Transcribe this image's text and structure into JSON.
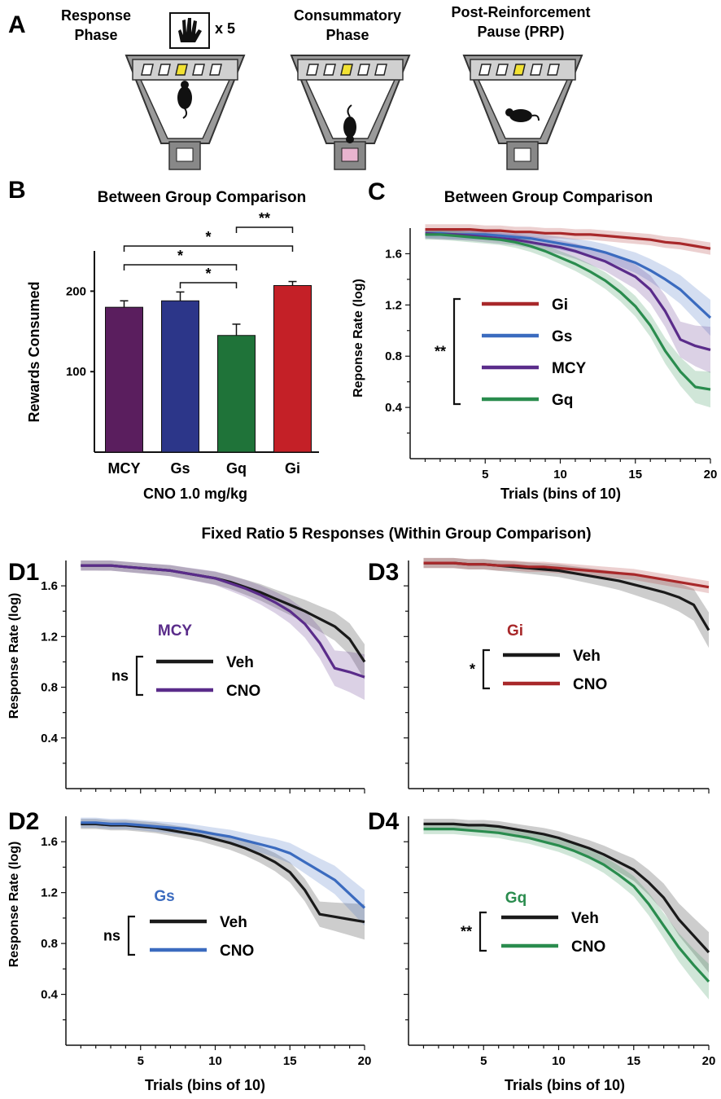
{
  "panel_A": {
    "label": "A",
    "stages": [
      {
        "title_line1": "Response",
        "title_line2": "Phase",
        "extra": "x 5",
        "tray": "white",
        "mouse": "center"
      },
      {
        "title_line1": "Consummatory",
        "title_line2": "Phase",
        "tray": "pink",
        "mouse": "bottom"
      },
      {
        "title_line1": "Post-Reinforcement",
        "title_line2": "Pause (PRP)",
        "tray": "white",
        "mouse": "lying"
      }
    ],
    "colors": {
      "hole_lit": "#f2e233",
      "tray_pink": "#e8b4cf",
      "wall": "#9a9a9a",
      "ceiling": "#d0d0d0"
    }
  },
  "section_title": "Fixed Ratio 5 Responses (Within Group Comparison)",
  "chart_data": [
    {
      "id": "B",
      "label": "B",
      "type": "bar",
      "title": "Between Group Comparison",
      "ylabel": "Rewards Consumed",
      "xlabel": "CNO 1.0 mg/kg",
      "categories": [
        "MCY",
        "Gs",
        "Gq",
        "Gi"
      ],
      "values": [
        180,
        188,
        145,
        207
      ],
      "errors": [
        8,
        11,
        14,
        5
      ],
      "colors": [
        "#5a1e5e",
        "#2c3689",
        "#1f7339",
        "#c42027"
      ],
      "ylim": [
        0,
        250
      ],
      "yticks": [
        100,
        200
      ],
      "significance": [
        {
          "from": 0,
          "to": 2,
          "label": "*"
        },
        {
          "from": 0,
          "to": 3,
          "label": "*"
        },
        {
          "from": 1,
          "to": 2,
          "label": "*"
        },
        {
          "from": 2,
          "to": 3,
          "label": "**"
        }
      ]
    },
    {
      "id": "C",
      "label": "C",
      "type": "line",
      "title": "Between Group Comparison",
      "xlabel": "Trials (bins of 10)",
      "ylabel": "Reponse Rate (log)",
      "xlim": [
        0,
        20
      ],
      "ylim": [
        0,
        1.8
      ],
      "xticks": [
        5,
        10,
        15,
        20
      ],
      "yticks": [
        0.4,
        0.8,
        1.2,
        1.6
      ],
      "ytick_labels": [
        "0.4",
        "0.8",
        "1.2",
        "1.6"
      ],
      "x": [
        1,
        2,
        3,
        4,
        5,
        6,
        7,
        8,
        9,
        10,
        11,
        12,
        13,
        14,
        15,
        16,
        17,
        18,
        19,
        20
      ],
      "legend_bracket": "**",
      "series": [
        {
          "name": "Gi",
          "color": "#a8282a",
          "band": 0.04,
          "band_scale": 1.2,
          "values": [
            1.79,
            1.79,
            1.79,
            1.79,
            1.78,
            1.78,
            1.77,
            1.77,
            1.76,
            1.76,
            1.75,
            1.75,
            1.74,
            1.73,
            1.72,
            1.71,
            1.69,
            1.68,
            1.66,
            1.64
          ]
        },
        {
          "name": "Gs",
          "color": "#3b6bbf",
          "band": 0.04,
          "band_scale": 3.5,
          "values": [
            1.76,
            1.76,
            1.75,
            1.75,
            1.75,
            1.74,
            1.73,
            1.72,
            1.7,
            1.68,
            1.66,
            1.64,
            1.61,
            1.57,
            1.53,
            1.47,
            1.4,
            1.32,
            1.21,
            1.1
          ]
        },
        {
          "name": "MCY",
          "color": "#5a2c8a",
          "band": 0.04,
          "band_scale": 4.5,
          "values": [
            1.76,
            1.75,
            1.75,
            1.74,
            1.73,
            1.72,
            1.71,
            1.69,
            1.67,
            1.65,
            1.62,
            1.58,
            1.54,
            1.48,
            1.42,
            1.32,
            1.15,
            0.93,
            0.88,
            0.85
          ]
        },
        {
          "name": "Gq",
          "color": "#2a8c4e",
          "band": 0.04,
          "band_scale": 3.5,
          "values": [
            1.75,
            1.75,
            1.74,
            1.73,
            1.72,
            1.71,
            1.69,
            1.66,
            1.62,
            1.57,
            1.52,
            1.46,
            1.39,
            1.3,
            1.19,
            1.04,
            0.84,
            0.68,
            0.56,
            0.54
          ]
        }
      ]
    },
    {
      "id": "D1",
      "label": "D1",
      "type": "line",
      "xlim": [
        0,
        20
      ],
      "ylim": [
        0,
        1.8
      ],
      "xticks": [
        5,
        10,
        15,
        20
      ],
      "show_xtick_labels": false,
      "yticks": [
        0.4,
        0.8,
        1.2,
        1.6
      ],
      "ytick_labels": [
        "0.4",
        "0.8",
        "1.2",
        "1.6"
      ],
      "ylabel": "Response Rate (log)",
      "x": [
        1,
        2,
        3,
        4,
        5,
        6,
        7,
        8,
        9,
        10,
        11,
        12,
        13,
        14,
        15,
        16,
        17,
        18,
        19,
        20
      ],
      "legend_title": "MCY",
      "legend_title_color": "#5a2c8a",
      "legend_bracket": "ns",
      "series": [
        {
          "name": "Veh",
          "color": "#1a1a1a",
          "band": 0.04,
          "band_scale": 3.5,
          "values": [
            1.76,
            1.76,
            1.76,
            1.75,
            1.74,
            1.73,
            1.72,
            1.7,
            1.68,
            1.66,
            1.63,
            1.59,
            1.55,
            1.5,
            1.45,
            1.4,
            1.34,
            1.28,
            1.18,
            1.0
          ]
        },
        {
          "name": "CNO",
          "color": "#5a2c8a",
          "band": 0.04,
          "band_scale": 4.5,
          "values": [
            1.76,
            1.76,
            1.76,
            1.75,
            1.74,
            1.73,
            1.72,
            1.7,
            1.68,
            1.66,
            1.62,
            1.58,
            1.53,
            1.47,
            1.4,
            1.3,
            1.15,
            0.95,
            0.92,
            0.88
          ]
        }
      ]
    },
    {
      "id": "D3",
      "label": "D3",
      "type": "line",
      "xlim": [
        0,
        20
      ],
      "ylim": [
        0,
        1.8
      ],
      "xticks": [
        5,
        10,
        15,
        20
      ],
      "show_xtick_labels": false,
      "yticks": [
        0.4,
        0.8,
        1.2,
        1.6
      ],
      "ytick_labels": [],
      "x": [
        1,
        2,
        3,
        4,
        5,
        6,
        7,
        8,
        9,
        10,
        11,
        12,
        13,
        14,
        15,
        16,
        17,
        18,
        19,
        20
      ],
      "legend_title": "Gi",
      "legend_title_color": "#a8282a",
      "legend_bracket": "*",
      "series": [
        {
          "name": "Veh",
          "color": "#1a1a1a",
          "band": 0.04,
          "band_scale": 3.5,
          "values": [
            1.78,
            1.78,
            1.78,
            1.77,
            1.77,
            1.76,
            1.75,
            1.74,
            1.73,
            1.72,
            1.7,
            1.68,
            1.66,
            1.64,
            1.61,
            1.58,
            1.55,
            1.51,
            1.45,
            1.25
          ]
        },
        {
          "name": "CNO",
          "color": "#a8282a",
          "band": 0.04,
          "band_scale": 1.2,
          "values": [
            1.78,
            1.78,
            1.78,
            1.77,
            1.77,
            1.76,
            1.76,
            1.75,
            1.75,
            1.74,
            1.73,
            1.72,
            1.71,
            1.7,
            1.69,
            1.67,
            1.65,
            1.63,
            1.61,
            1.59
          ]
        }
      ]
    },
    {
      "id": "D2",
      "label": "D2",
      "type": "line",
      "xlim": [
        0,
        20
      ],
      "ylim": [
        0,
        1.8
      ],
      "xticks": [
        5,
        10,
        15,
        20
      ],
      "show_xtick_labels": true,
      "yticks": [
        0.4,
        0.8,
        1.2,
        1.6
      ],
      "ytick_labels": [
        "0.4",
        "0.8",
        "1.2",
        "1.6"
      ],
      "xlabel": "Trials (bins of 10)",
      "ylabel": "Response Rate (log)",
      "x": [
        1,
        2,
        3,
        4,
        5,
        6,
        7,
        8,
        9,
        10,
        11,
        12,
        13,
        14,
        15,
        16,
        17,
        18,
        19,
        20
      ],
      "legend_title": "Gs",
      "legend_title_color": "#3b6bbf",
      "legend_bracket": "ns",
      "series": [
        {
          "name": "Veh",
          "color": "#1a1a1a",
          "band": 0.04,
          "band_scale": 3.5,
          "values": [
            1.74,
            1.74,
            1.73,
            1.73,
            1.72,
            1.71,
            1.69,
            1.67,
            1.65,
            1.62,
            1.59,
            1.55,
            1.5,
            1.44,
            1.36,
            1.22,
            1.03,
            1.01,
            0.99,
            0.97
          ]
        },
        {
          "name": "CNO",
          "color": "#3b6bbf",
          "band": 0.04,
          "band_scale": 3.5,
          "values": [
            1.75,
            1.75,
            1.74,
            1.74,
            1.73,
            1.72,
            1.71,
            1.7,
            1.68,
            1.66,
            1.64,
            1.61,
            1.58,
            1.55,
            1.51,
            1.44,
            1.37,
            1.3,
            1.19,
            1.08
          ]
        }
      ]
    },
    {
      "id": "D4",
      "label": "D4",
      "type": "line",
      "xlim": [
        0,
        20
      ],
      "ylim": [
        0,
        1.8
      ],
      "xticks": [
        5,
        10,
        15,
        20
      ],
      "show_xtick_labels": true,
      "yticks": [
        0.4,
        0.8,
        1.2,
        1.6
      ],
      "ytick_labels": [],
      "xlabel": "Trials (bins of 10)",
      "x": [
        1,
        2,
        3,
        4,
        5,
        6,
        7,
        8,
        9,
        10,
        11,
        12,
        13,
        14,
        15,
        16,
        17,
        18,
        19,
        20
      ],
      "legend_title": "Gq",
      "legend_title_color": "#2a8c4e",
      "legend_bracket": "**",
      "series": [
        {
          "name": "Veh",
          "color": "#1a1a1a",
          "band": 0.04,
          "band_scale": 4.0,
          "values": [
            1.74,
            1.74,
            1.74,
            1.73,
            1.73,
            1.72,
            1.7,
            1.68,
            1.66,
            1.63,
            1.59,
            1.55,
            1.5,
            1.44,
            1.38,
            1.28,
            1.16,
            0.99,
            0.86,
            0.73
          ]
        },
        {
          "name": "CNO",
          "color": "#2a8c4e",
          "band": 0.04,
          "band_scale": 3.5,
          "values": [
            1.7,
            1.7,
            1.7,
            1.69,
            1.68,
            1.67,
            1.65,
            1.63,
            1.6,
            1.57,
            1.53,
            1.48,
            1.42,
            1.34,
            1.25,
            1.11,
            0.94,
            0.77,
            0.63,
            0.5
          ]
        }
      ]
    }
  ]
}
